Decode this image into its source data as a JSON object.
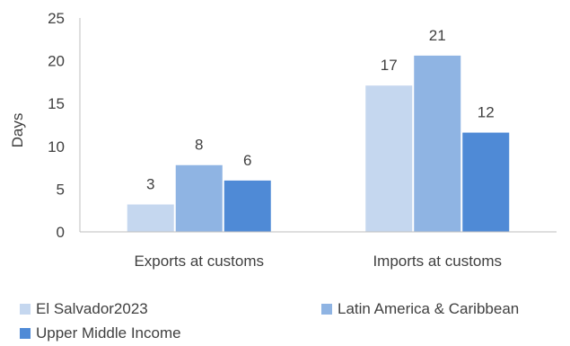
{
  "chart_data": {
    "type": "bar",
    "categories": [
      "Exports at customs",
      "Imports at customs"
    ],
    "series": [
      {
        "name": "El Salvador2023",
        "values": [
          3.2,
          17.1
        ],
        "labels": [
          "3",
          "17"
        ],
        "color": "#c5d7ef"
      },
      {
        "name": "Latin America & Caribbean",
        "values": [
          7.8,
          20.6
        ],
        "labels": [
          "8",
          "21"
        ],
        "color": "#8fb4e3"
      },
      {
        "name": "Upper Middle Income",
        "values": [
          6.0,
          11.6
        ],
        "labels": [
          "6",
          "12"
        ],
        "color": "#4f8ad6"
      }
    ],
    "ylabel": "Days",
    "ylim": [
      0,
      25
    ],
    "yticks": [
      "0",
      "5",
      "10",
      "15",
      "20",
      "25"
    ],
    "grid": false,
    "legend": "bottom"
  }
}
